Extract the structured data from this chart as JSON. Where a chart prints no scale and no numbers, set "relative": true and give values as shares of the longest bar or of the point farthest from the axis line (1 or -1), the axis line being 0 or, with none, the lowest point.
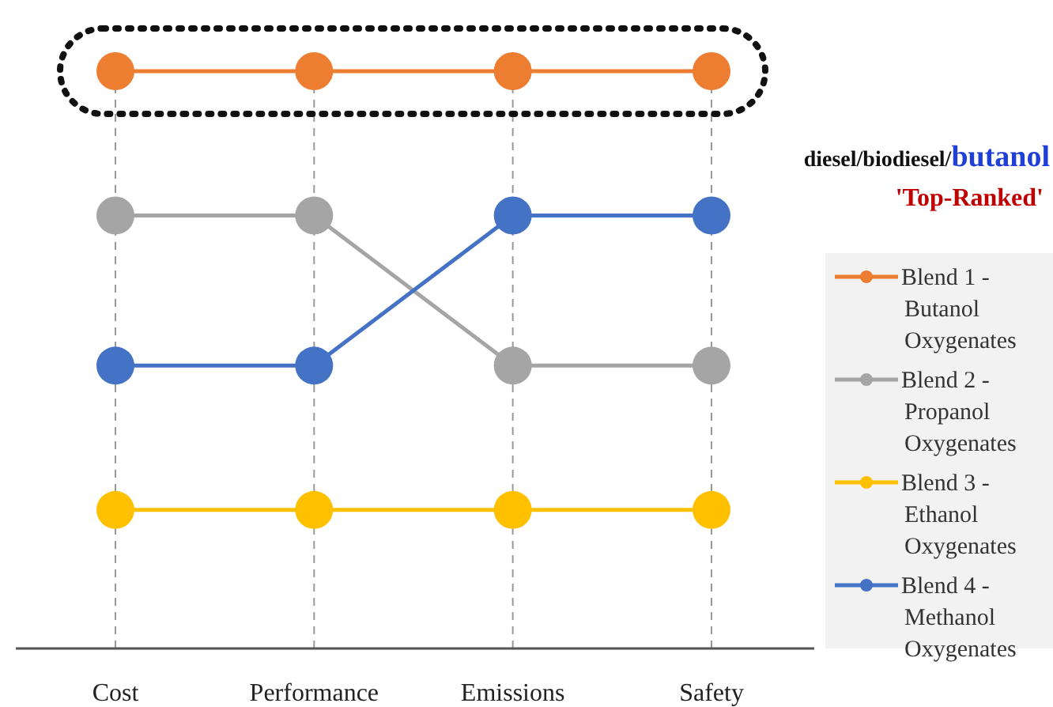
{
  "chart_data": {
    "type": "line",
    "relative": true,
    "categories": [
      "Cost",
      "Performance",
      "Emissions",
      "Safety"
    ],
    "series": [
      {
        "name": "Blend 1 - Butanol Oxygenates",
        "color": "#ed7d31",
        "values": [
          1,
          1,
          1,
          1
        ]
      },
      {
        "name": "Blend 2 - Propanol Oxygenates",
        "color": "#a5a5a5",
        "values": [
          0.75,
          0.75,
          0.49,
          0.49
        ]
      },
      {
        "name": "Blend 3 - Ethanol Oxygenates",
        "color": "#ffc000",
        "values": [
          0.24,
          0.24,
          0.24,
          0.24
        ]
      },
      {
        "name": "Blend 4 - Methanol Oxygenates",
        "color": "#4472c4",
        "values": [
          0.49,
          0.49,
          0.75,
          0.75
        ]
      }
    ],
    "annotations": [
      "diesel/biodiesel/butanol",
      "'Top-Ranked'"
    ],
    "grid": "x",
    "legend": "right",
    "marker": "circle",
    "line_style": "solid"
  }
}
